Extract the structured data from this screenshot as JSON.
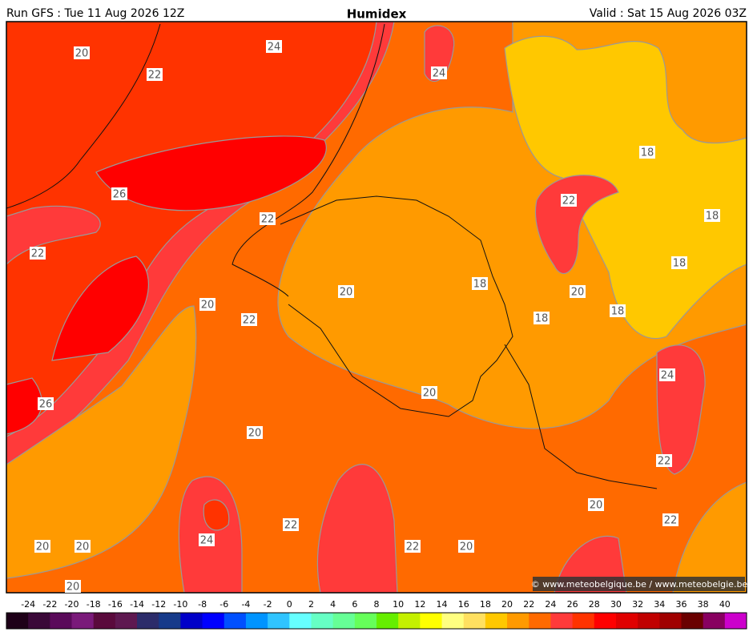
{
  "header": {
    "left": "Run GFS : Tue 11 Aug 2026 12Z",
    "title": "Humidex",
    "right": "Valid : Sat 15 Aug 2026 03Z"
  },
  "map": {
    "contour_labels": [
      20,
      24,
      22,
      24,
      18,
      26,
      22,
      22,
      18,
      22,
      18,
      18,
      20,
      20,
      20,
      18,
      22,
      18,
      24,
      20,
      26,
      20,
      22,
      20,
      22,
      22,
      24,
      20,
      20,
      22,
      20,
      20
    ],
    "copyright": "© www.meteobelgique.be / www.meteobelgie.be"
  },
  "colorbar": {
    "labels": [
      -24,
      -22,
      -20,
      -18,
      -16,
      -14,
      -12,
      -10,
      -8,
      -6,
      -4,
      -2,
      0,
      2,
      4,
      6,
      8,
      10,
      12,
      14,
      16,
      18,
      20,
      22,
      24,
      26,
      28,
      30,
      32,
      34,
      36,
      38,
      40
    ],
    "colors": [
      "#1e0018",
      "#3a0838",
      "#5a0a5a",
      "#7a1a7a",
      "#5a0a3c",
      "#5e1850",
      "#2c2c6a",
      "#163a8a",
      "#0000c8",
      "#0000ff",
      "#0050ff",
      "#0094ff",
      "#30c4ff",
      "#66ffff",
      "#66ffc4",
      "#66ff96",
      "#66ff5a",
      "#66ee00",
      "#c4f000",
      "#ffff00",
      "#ffff80",
      "#ffe060",
      "#ffc800",
      "#ff9a00",
      "#ff6a00",
      "#ff3a3a",
      "#ff3300",
      "#ff0000",
      "#e00000",
      "#c00000",
      "#a00000",
      "#6a0000",
      "#880060",
      "#cc00cc"
    ]
  }
}
